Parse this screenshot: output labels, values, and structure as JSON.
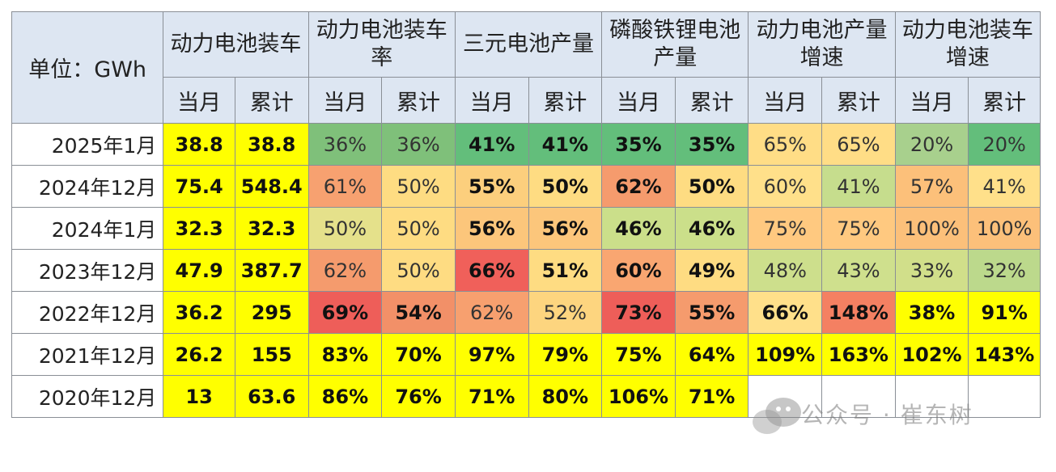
{
  "header": {
    "unit_label": "单位：GWh",
    "groups": [
      "动力电池装车",
      "动力电池装车率",
      "三元电池产量",
      "磷酸铁锂电池产量",
      "动力电池产量增速",
      "动力电池装车增速"
    ],
    "sub_labels": [
      "当月",
      "累计"
    ]
  },
  "rows": [
    {
      "label": "2025年1月",
      "cells": [
        "38.8",
        "38.8",
        "36%",
        "36%",
        "41%",
        "41%",
        "35%",
        "35%",
        "65%",
        "65%",
        "20%",
        "20%"
      ]
    },
    {
      "label": "2024年12月",
      "cells": [
        "75.4",
        "548.4",
        "61%",
        "50%",
        "55%",
        "50%",
        "62%",
        "50%",
        "60%",
        "41%",
        "57%",
        "41%"
      ]
    },
    {
      "label": "2024年1月",
      "cells": [
        "32.3",
        "32.3",
        "50%",
        "50%",
        "56%",
        "56%",
        "46%",
        "46%",
        "75%",
        "75%",
        "100%",
        "100%"
      ]
    },
    {
      "label": "2023年12月",
      "cells": [
        "47.9",
        "387.7",
        "62%",
        "50%",
        "66%",
        "51%",
        "60%",
        "49%",
        "48%",
        "43%",
        "33%",
        "32%"
      ]
    },
    {
      "label": "2022年12月",
      "cells": [
        "36.2",
        "295",
        "69%",
        "54%",
        "62%",
        "52%",
        "73%",
        "55%",
        "66%",
        "148%",
        "38%",
        "91%"
      ]
    },
    {
      "label": "2021年12月",
      "cells": [
        "26.2",
        "155",
        "83%",
        "70%",
        "97%",
        "79%",
        "75%",
        "64%",
        "109%",
        "163%",
        "102%",
        "143%"
      ]
    },
    {
      "label": "2020年12月",
      "cells": [
        "13",
        "63.6",
        "86%",
        "76%",
        "71%",
        "80%",
        "106%",
        "71%",
        "",
        "",
        "",
        ""
      ]
    }
  ],
  "cell_colors": [
    [
      "#ffff00",
      "#ffff00",
      "#7fc07a",
      "#7fc07a",
      "#63be7b",
      "#63be7b",
      "#63be7b",
      "#63be7b",
      "#ffdd86",
      "#ffdd86",
      "#a8d08d",
      "#63be7b"
    ],
    [
      "#ffff00",
      "#ffff00",
      "#f7a170",
      "#fedc82",
      "#fccf7d",
      "#fedc82",
      "#f59b6d",
      "#fedc82",
      "#ffe08a",
      "#c6dd8d",
      "#fcc07a",
      "#ffe08a"
    ],
    [
      "#ffff00",
      "#ffff00",
      "#e5e18b",
      "#fedc82",
      "#fcc67b",
      "#fcc67b",
      "#cbdf8a",
      "#cbdf8a",
      "#ffc980",
      "#ffc980",
      "#fcc07a",
      "#fcc07a"
    ],
    [
      "#ffff00",
      "#ffff00",
      "#f59b6d",
      "#fedc82",
      "#f0605a",
      "#fedc82",
      "#f9a671",
      "#fedc82",
      "#cddf8c",
      "#cfe08d",
      "#d1df8a",
      "#bcd98c"
    ],
    [
      "#ffff00",
      "#ffff00",
      "#ee5e59",
      "#f29068",
      "#f7a06f",
      "#fdd57f",
      "#ee5e59",
      "#f59b6d",
      "#ffe08a",
      "#f48062",
      "#ffff00",
      "#ffff00"
    ],
    [
      "#ffff00",
      "#ffff00",
      "#ffff00",
      "#ffff00",
      "#ffff00",
      "#ffff00",
      "#ffff00",
      "#ffff00",
      "#ffff00",
      "#ffff00",
      "#ffff00",
      "#ffff00"
    ],
    [
      "#ffff00",
      "#ffff00",
      "#ffff00",
      "#ffff00",
      "#ffff00",
      "#ffff00",
      "#ffff00",
      "#ffff00",
      "#ffffff",
      "#ffffff",
      "#ffffff",
      "#ffffff"
    ]
  ],
  "cell_bold": [
    [
      true,
      true,
      false,
      false,
      true,
      true,
      true,
      true,
      false,
      false,
      false,
      false
    ],
    [
      true,
      true,
      false,
      false,
      true,
      true,
      true,
      true,
      false,
      false,
      false,
      false
    ],
    [
      true,
      true,
      false,
      false,
      true,
      true,
      true,
      true,
      false,
      false,
      false,
      false
    ],
    [
      true,
      true,
      false,
      false,
      true,
      true,
      true,
      true,
      false,
      false,
      false,
      false
    ],
    [
      true,
      true,
      true,
      true,
      false,
      false,
      true,
      true,
      true,
      true,
      true,
      true
    ],
    [
      true,
      true,
      true,
      true,
      true,
      true,
      true,
      true,
      true,
      true,
      true,
      true
    ],
    [
      true,
      true,
      true,
      true,
      true,
      true,
      true,
      true,
      false,
      false,
      false,
      false
    ]
  ],
  "watermark": {
    "text": "公众号 · 崔东树"
  }
}
